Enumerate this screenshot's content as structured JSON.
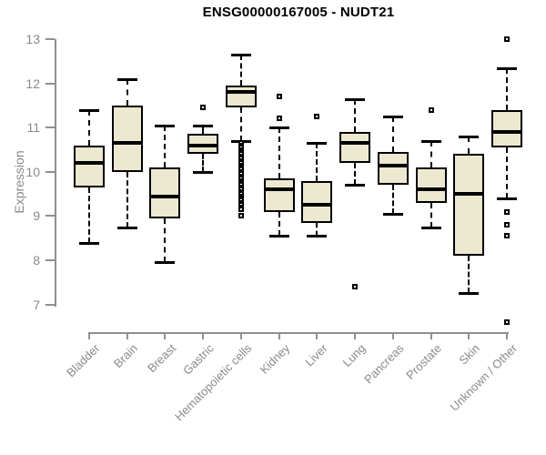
{
  "chart_data": {
    "type": "box",
    "title": "ENSG00000167005 - NUDT21",
    "ylabel": "Expression",
    "xlabel": "",
    "ylim": [
      6.4,
      13.2
    ],
    "yticks": [
      7,
      8,
      9,
      10,
      11,
      12,
      13
    ],
    "grid": false,
    "legend": false,
    "categories": [
      "Bladder",
      "Brain",
      "Breast",
      "Gastric",
      "Hematopoietic cells",
      "Kidney",
      "Liver",
      "Lung",
      "Pancreas",
      "Prostate",
      "Skin",
      "Unknown / Other"
    ],
    "boxes": [
      {
        "id": "bladder",
        "label": "Bladder",
        "whisker_low": 8.4,
        "q1": 9.65,
        "median": 10.2,
        "q3": 10.6,
        "whisker_high": 11.4,
        "outliers": []
      },
      {
        "id": "brain",
        "label": "Brain",
        "whisker_low": 8.75,
        "q1": 10.0,
        "median": 10.65,
        "q3": 11.5,
        "whisker_high": 12.1,
        "outliers": []
      },
      {
        "id": "breast",
        "label": "Breast",
        "whisker_low": 7.95,
        "q1": 8.95,
        "median": 9.45,
        "q3": 10.1,
        "whisker_high": 11.05,
        "outliers": []
      },
      {
        "id": "gastric",
        "label": "Gastric",
        "whisker_low": 10.0,
        "q1": 10.4,
        "median": 10.6,
        "q3": 10.85,
        "whisker_high": 11.05,
        "outliers": [
          11.45
        ]
      },
      {
        "id": "hematopoietic-cells",
        "label": "Hematopoietic cells",
        "whisker_low": 10.7,
        "q1": 11.45,
        "median": 11.8,
        "q3": 11.95,
        "whisker_high": 12.65,
        "outliers": [
          10.65,
          10.6,
          10.55,
          10.5,
          10.45,
          10.4,
          10.35,
          10.3,
          10.25,
          10.2,
          10.15,
          10.1,
          10.05,
          10.0,
          9.95,
          9.9,
          9.85,
          9.8,
          9.75,
          9.7,
          9.65,
          9.6,
          9.55,
          9.5,
          9.45,
          9.4,
          9.35,
          9.3,
          9.25,
          9.2,
          9.15,
          9.0
        ]
      },
      {
        "id": "kidney",
        "label": "Kidney",
        "whisker_low": 8.55,
        "q1": 9.1,
        "median": 9.6,
        "q3": 9.85,
        "whisker_high": 11.0,
        "outliers": [
          11.7,
          11.2
        ]
      },
      {
        "id": "liver",
        "label": "Liver",
        "whisker_low": 8.55,
        "q1": 8.85,
        "median": 9.25,
        "q3": 9.8,
        "whisker_high": 10.65,
        "outliers": [
          11.25
        ]
      },
      {
        "id": "lung",
        "label": "Lung",
        "whisker_low": 9.7,
        "q1": 10.2,
        "median": 10.65,
        "q3": 10.9,
        "whisker_high": 11.65,
        "outliers": [
          7.4
        ]
      },
      {
        "id": "pancreas",
        "label": "Pancreas",
        "whisker_low": 9.05,
        "q1": 9.7,
        "median": 10.15,
        "q3": 10.45,
        "whisker_high": 11.25,
        "outliers": []
      },
      {
        "id": "prostate",
        "label": "Prostate",
        "whisker_low": 8.75,
        "q1": 9.3,
        "median": 9.6,
        "q3": 10.1,
        "whisker_high": 10.7,
        "outliers": [
          11.4
        ]
      },
      {
        "id": "skin",
        "label": "Skin",
        "whisker_low": 7.25,
        "q1": 8.1,
        "median": 9.5,
        "q3": 10.4,
        "whisker_high": 10.8,
        "outliers": []
      },
      {
        "id": "unknown-other",
        "label": "Unknown / Other",
        "whisker_low": 9.4,
        "q1": 10.55,
        "median": 10.9,
        "q3": 11.4,
        "whisker_high": 12.35,
        "outliers": [
          13.0,
          9.1,
          8.8,
          8.55,
          6.6
        ]
      }
    ],
    "colors": {
      "box_fill": "#EDE8D0",
      "box_border": "#000000",
      "median": "#000000",
      "axis": "#909090",
      "tick_text": "#8a8a8a",
      "title_text": "#000000"
    }
  }
}
